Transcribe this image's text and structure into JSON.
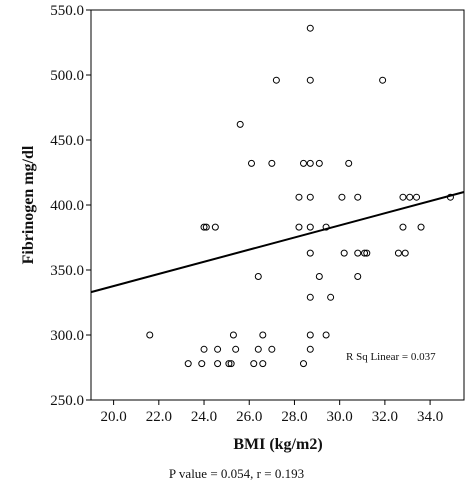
{
  "chart_data": {
    "type": "scatter",
    "xlabel": "BMI (kg/m2)",
    "ylabel": "Fibrinogen mg/dl",
    "xlim": [
      19.0,
      35.5
    ],
    "ylim": [
      250.0,
      550.0
    ],
    "xticks": [
      "20.0",
      "22.0",
      "24.0",
      "26.0",
      "28.0",
      "30.0",
      "32.0",
      "34.0"
    ],
    "xtick_values": [
      20,
      22,
      24,
      26,
      28,
      30,
      32,
      34
    ],
    "yticks": [
      "250.0",
      "300.0",
      "350.0",
      "400.0",
      "450.0",
      "500.0",
      "550.0"
    ],
    "ytick_values": [
      250,
      300,
      350,
      400,
      450,
      500,
      550
    ],
    "grid": false,
    "marker": "open-circle",
    "points": [
      [
        21.6,
        300
      ],
      [
        23.3,
        278
      ],
      [
        23.9,
        278
      ],
      [
        24.6,
        278
      ],
      [
        25.1,
        278
      ],
      [
        25.2,
        278
      ],
      [
        26.2,
        278
      ],
      [
        26.6,
        278
      ],
      [
        28.4,
        278
      ],
      [
        24.0,
        289
      ],
      [
        24.6,
        289
      ],
      [
        25.4,
        289
      ],
      [
        26.4,
        289
      ],
      [
        27.0,
        289
      ],
      [
        28.7,
        289
      ],
      [
        25.3,
        300
      ],
      [
        26.6,
        300
      ],
      [
        28.7,
        300
      ],
      [
        29.4,
        300
      ],
      [
        28.7,
        329
      ],
      [
        29.6,
        329
      ],
      [
        26.4,
        345
      ],
      [
        29.1,
        345
      ],
      [
        30.8,
        345
      ],
      [
        28.7,
        363
      ],
      [
        30.2,
        363
      ],
      [
        30.8,
        363
      ],
      [
        31.1,
        363
      ],
      [
        31.2,
        363
      ],
      [
        32.6,
        363
      ],
      [
        32.9,
        363
      ],
      [
        24.0,
        383
      ],
      [
        24.1,
        383
      ],
      [
        24.5,
        383
      ],
      [
        28.2,
        383
      ],
      [
        28.7,
        383
      ],
      [
        29.4,
        383
      ],
      [
        32.8,
        383
      ],
      [
        33.6,
        383
      ],
      [
        28.2,
        406
      ],
      [
        28.7,
        406
      ],
      [
        30.1,
        406
      ],
      [
        30.8,
        406
      ],
      [
        32.8,
        406
      ],
      [
        33.1,
        406
      ],
      [
        33.4,
        406
      ],
      [
        34.9,
        406
      ],
      [
        26.1,
        432
      ],
      [
        27.0,
        432
      ],
      [
        28.4,
        432
      ],
      [
        28.7,
        432
      ],
      [
        29.1,
        432
      ],
      [
        30.4,
        432
      ],
      [
        25.6,
        462
      ],
      [
        27.2,
        496
      ],
      [
        28.7,
        496
      ],
      [
        31.9,
        496
      ],
      [
        28.7,
        536
      ]
    ],
    "fit_line": {
      "type": "linear",
      "x": [
        19.0,
        35.5
      ],
      "y": [
        333,
        410
      ]
    },
    "annotation": "R Sq Linear = 0.037"
  },
  "caption": "P value = 0.054, r = 0.193"
}
